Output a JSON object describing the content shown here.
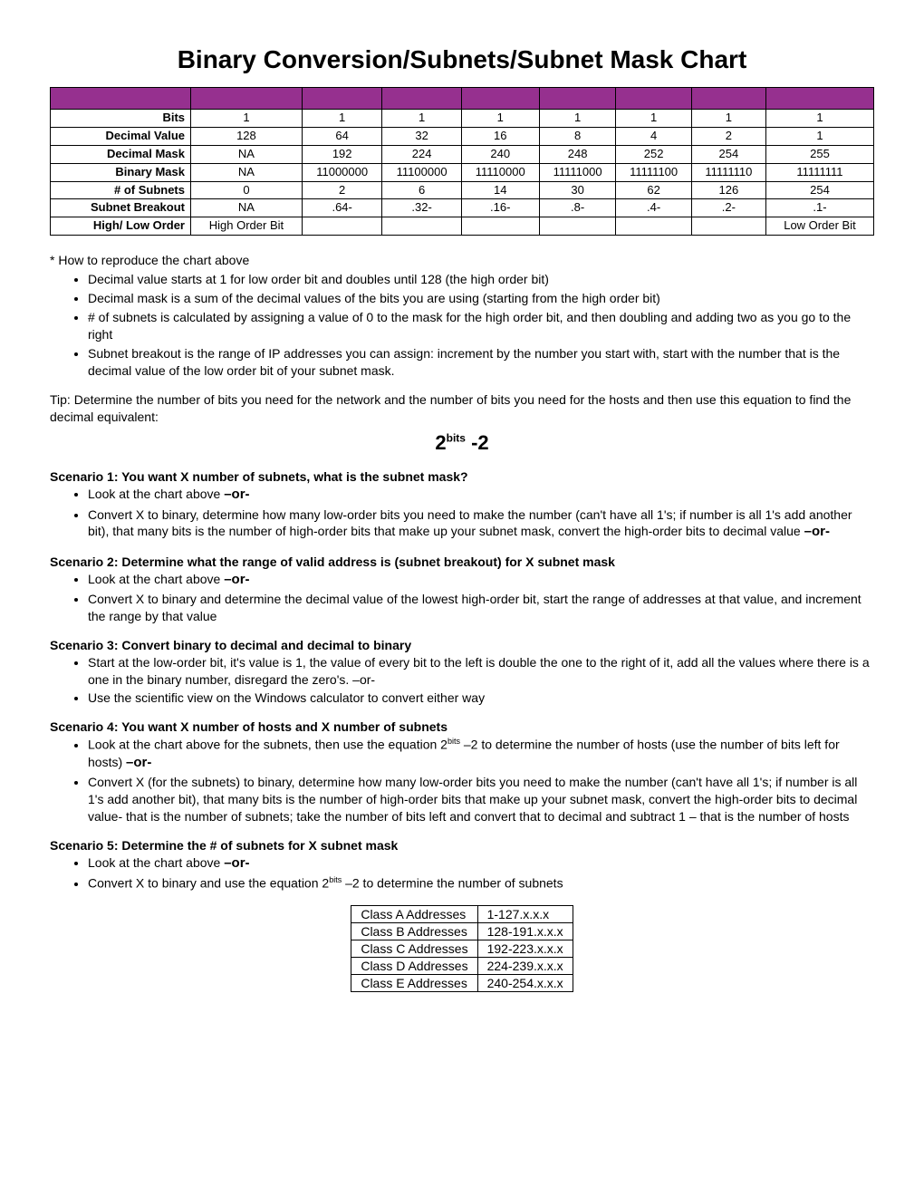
{
  "title": "Binary Conversion/Subnets/Subnet Mask Chart",
  "mainTable": {
    "rowLabels": [
      "Bits",
      "Decimal Value",
      "Decimal Mask",
      "Binary Mask",
      "# of Subnets",
      "Subnet Breakout",
      "High/ Low Order"
    ],
    "rows": [
      [
        "1",
        "1",
        "1",
        "1",
        "1",
        "1",
        "1",
        "1"
      ],
      [
        "128",
        "64",
        "32",
        "16",
        "8",
        "4",
        "2",
        "1"
      ],
      [
        "NA",
        "192",
        "224",
        "240",
        "248",
        "252",
        "254",
        "255"
      ],
      [
        "NA",
        "11000000",
        "11100000",
        "11110000",
        "11111000",
        "11111100",
        "11111110",
        "11111111"
      ],
      [
        "0",
        "2",
        "6",
        "14",
        "30",
        "62",
        "126",
        "254"
      ],
      [
        "NA",
        ".64-",
        ".32-",
        ".16-",
        ".8-",
        ".4-",
        ".2-",
        ".1-"
      ],
      [
        "High Order Bit",
        "",
        "",
        "",
        "",
        "",
        "",
        "Low Order Bit"
      ]
    ]
  },
  "reproduce": {
    "lead": "* How to reproduce the chart above",
    "bullets": [
      "Decimal value starts at 1 for low order bit and doubles until 128 (the high order bit)",
      "Decimal mask is a sum of the decimal values of the bits you are using (starting from the high order bit)",
      "# of subnets is calculated by assigning a value of 0 to the mask for the high order bit, and then doubling and adding two as you go to the right",
      "Subnet breakout is the range of IP addresses you can assign: increment by the number you start with, start with the number that is the decimal value of the low order bit of your subnet mask."
    ]
  },
  "tip": "Tip:  Determine the number of bits you need for the network and the number of bits you need for the hosts and then use this equation to find the decimal equivalent:",
  "formulaBase": "2",
  "formulaExp": "bits",
  "formulaRest": " -2",
  "or": "–or-",
  "scenario1": {
    "title": "Scenario 1: You want X number of subnets, what is the subnet mask?",
    "b1a": "Look at the chart above ",
    "b2a": "Convert X to binary, determine how many low-order bits you need to make the number (can't have all 1's; if number is all 1's add another bit), that many bits is the number of high-order bits that make up your subnet mask, convert the high-order bits to decimal value "
  },
  "scenario2": {
    "title": "Scenario 2: Determine what the range of valid address is (subnet breakout) for X subnet mask",
    "b1a": "Look at the chart above ",
    "b2": "Convert X to binary and determine the decimal value of the lowest high-order bit, start the range of addresses at that value, and increment the range by that value"
  },
  "scenario3": {
    "title": "Scenario 3: Convert binary to decimal and decimal to binary",
    "b1": "Start at the low-order bit, it's value is 1, the value of every bit to the left is double the one to the right of it, add all the values where there is a one in the binary number, disregard the zero's. –or-",
    "b2": "Use the scientific view on the Windows calculator to convert either way"
  },
  "scenario4": {
    "title": "Scenario 4: You want X number of hosts and X number of subnets",
    "b1a": "Look at the chart above for the subnets, then use the equation  2",
    "b1exp": "bits",
    "b1b": " –2 to determine the number of hosts (use the number of bits left for hosts) ",
    "b2": "Convert X (for the subnets) to binary, determine how many low-order bits you need to make the number (can't have all 1's; if number is all 1's add another bit), that many bits is the number of high-order bits that make up your subnet mask, convert the high-order bits to decimal value- that is the number of subnets; take the number of bits left and convert that to decimal and subtract 1 – that is the number of hosts"
  },
  "scenario5": {
    "title": "Scenario 5: Determine the # of subnets for X subnet mask",
    "b1a": "Look at the chart above ",
    "b2a": "Convert X to binary and use the equation 2",
    "b2exp": "bits",
    "b2b": " –2 to determine the number of subnets"
  },
  "classTable": {
    "rows": [
      [
        "Class A Addresses",
        "1-127.x.x.x"
      ],
      [
        "Class B Addresses",
        "128-191.x.x.x"
      ],
      [
        "Class C Addresses",
        "192-223.x.x.x"
      ],
      [
        "Class D Addresses",
        "224-239.x.x.x"
      ],
      [
        "Class E Addresses",
        "240-254.x.x.x"
      ]
    ]
  }
}
